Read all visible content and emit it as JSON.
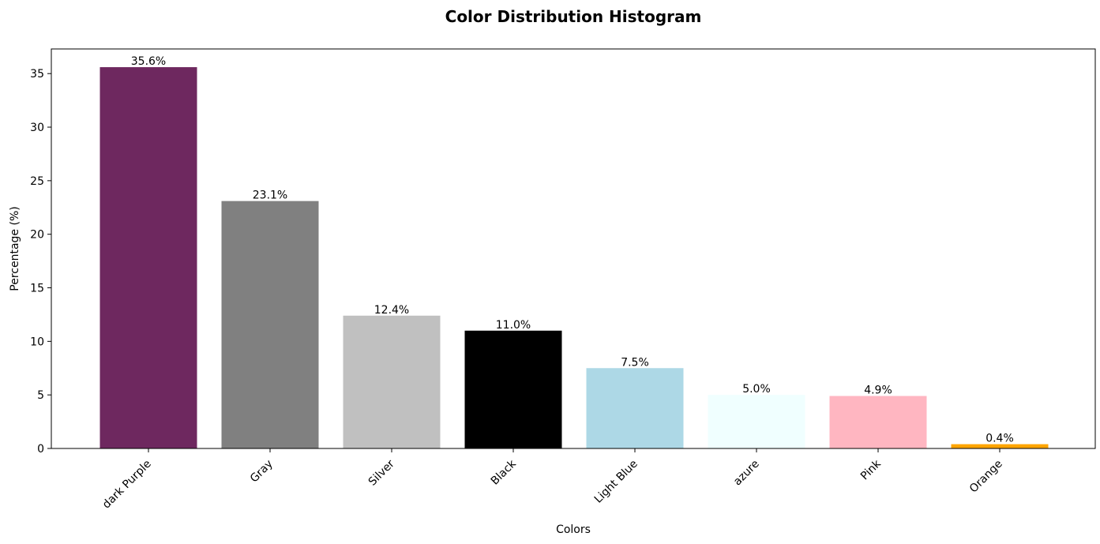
{
  "chart_data": {
    "type": "bar",
    "title": "Color Distribution Histogram",
    "xlabel": "Colors",
    "ylabel": "Percentage (%)",
    "ylim": [
      0,
      37.3
    ],
    "yticks": [
      0,
      5,
      10,
      15,
      20,
      25,
      30,
      35
    ],
    "grid": false,
    "categories": [
      "dark Purple",
      "Gray",
      "Silver",
      "Black",
      "Light Blue",
      "azure",
      "Pink",
      "Orange"
    ],
    "values": [
      35.6,
      23.1,
      12.4,
      11.0,
      7.5,
      5.0,
      4.9,
      0.4
    ],
    "value_labels": [
      "35.6%",
      "23.1%",
      "12.4%",
      "11.0%",
      "7.5%",
      "5.0%",
      "4.9%",
      "0.4%"
    ],
    "colors": [
      "#6e285f",
      "#808080",
      "#c0c0c0",
      "#000000",
      "#add8e6",
      "#f0ffff",
      "#ffb6c1",
      "#ffa500"
    ]
  }
}
